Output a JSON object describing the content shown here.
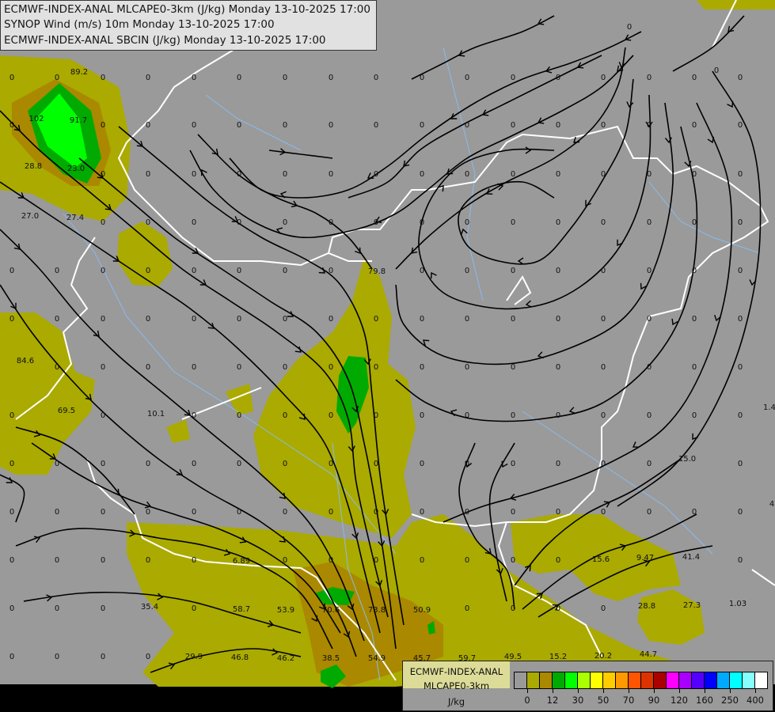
{
  "header": {
    "lines": [
      "ECMWF-INDEX-ANAL MLCAPE0-3km (J/kg) Monday 13-10-2025 17:00",
      "SYNOP Wind (m/s) 10m Monday 13-10-2025 17:00",
      "ECMWF-INDEX-ANAL SBCIN (J/kg) Monday 13-10-2025 17:00"
    ]
  },
  "legend": {
    "line1": "ECMWF-INDEX-ANAL",
    "line2": "MLCAPE0-3km",
    "unit": "J/kg",
    "colors": [
      "#9a9a9a",
      "#aaaa00",
      "#aa8800",
      "#00aa00",
      "#00ff00",
      "#aaff00",
      "#ffff00",
      "#ffcc00",
      "#ff9900",
      "#ff5500",
      "#dd3300",
      "#aa0000",
      "#ff00ff",
      "#aa00ff",
      "#5500ff",
      "#0000ff",
      "#00aaff",
      "#00ffff",
      "#88ffff",
      "#ffffff"
    ],
    "tick_labels": [
      "0",
      "12",
      "30",
      "50",
      "70",
      "90",
      "120",
      "160",
      "250",
      "400"
    ]
  },
  "map": {
    "background_color": "#9a9a9a",
    "cape_low_color": "#aaaa00",
    "cape_mid_color": "#aa8800",
    "cape_green_color": "#00aa00",
    "cape_bright_color": "#00ff00",
    "border_color": "#ffffff",
    "river_color": "#88bbee",
    "streamline_color": "#000000",
    "default_value": "0",
    "values": [
      "89.2",
      "102",
      "91.7",
      "28.8",
      "23.0",
      "27.0",
      "27.4",
      "79.8",
      "84.6",
      "69.5",
      "10.1",
      "15.0",
      "41.4",
      "15.6",
      "9.47",
      "6.89",
      "35.4",
      "58.7",
      "53.9",
      "70.6",
      "73.8",
      "50.9",
      "28.8",
      "27.3",
      "1.03",
      "29.9",
      "46.8",
      "46.2",
      "38.5",
      "54.9",
      "45.7",
      "59.7",
      "49.5",
      "15.2",
      "20.2",
      "44.7",
      "1.4",
      "4"
    ]
  }
}
